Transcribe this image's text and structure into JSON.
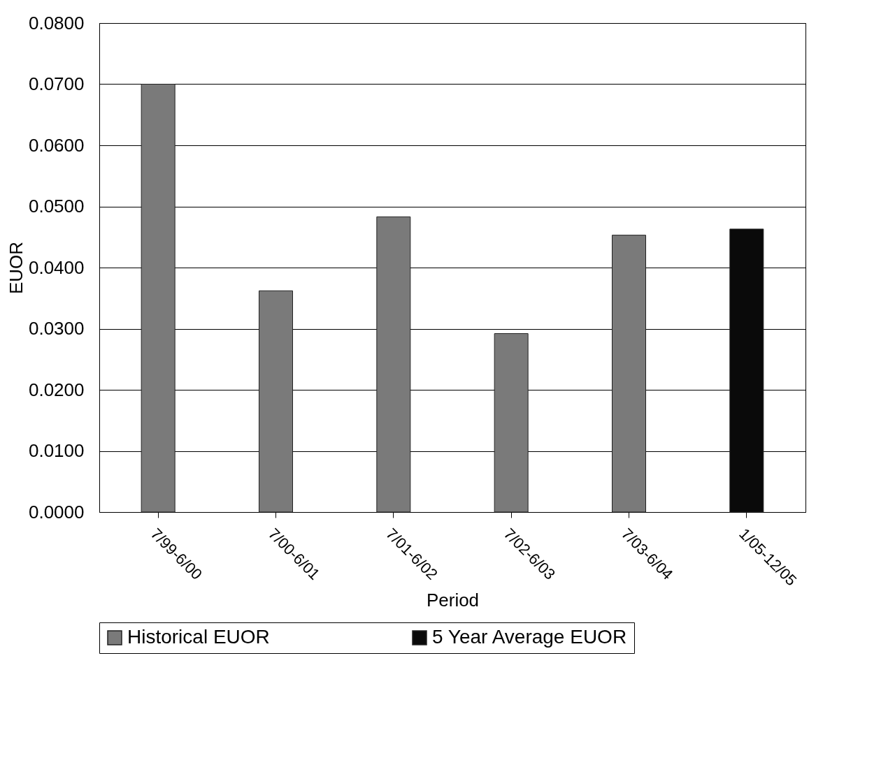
{
  "chart_data": {
    "type": "bar",
    "xlabel": "Period",
    "ylabel": "EUOR",
    "categories": [
      "7/99-6/00",
      "7/00-6/01",
      "7/01-6/02",
      "7/02-6/03",
      "7/03-6/04",
      "1/05-12/05"
    ],
    "series": [
      {
        "name": "Historical EUOR",
        "color": "#7a7a7a",
        "values": [
          0.07,
          0.0362,
          0.0483,
          0.0292,
          0.0453,
          null
        ]
      },
      {
        "name": "5 Year Average EUOR",
        "color": "#0a0a0a",
        "values": [
          null,
          null,
          null,
          null,
          null,
          0.0463
        ]
      }
    ],
    "ylim": [
      0,
      0.08
    ],
    "yticks": [
      {
        "value": 0,
        "label": "0.0000"
      },
      {
        "value": 0.01,
        "label": "0.0100"
      },
      {
        "value": 0.02,
        "label": "0.0200"
      },
      {
        "value": 0.03,
        "label": "0.0300"
      },
      {
        "value": 0.04,
        "label": "0.0400"
      },
      {
        "value": 0.05,
        "label": "0.0500"
      },
      {
        "value": 0.06,
        "label": "0.0600"
      },
      {
        "value": 0.07,
        "label": "0.0700"
      },
      {
        "value": 0.08,
        "label": "0.0800"
      }
    ],
    "grid": "y",
    "legend": "bottom"
  }
}
